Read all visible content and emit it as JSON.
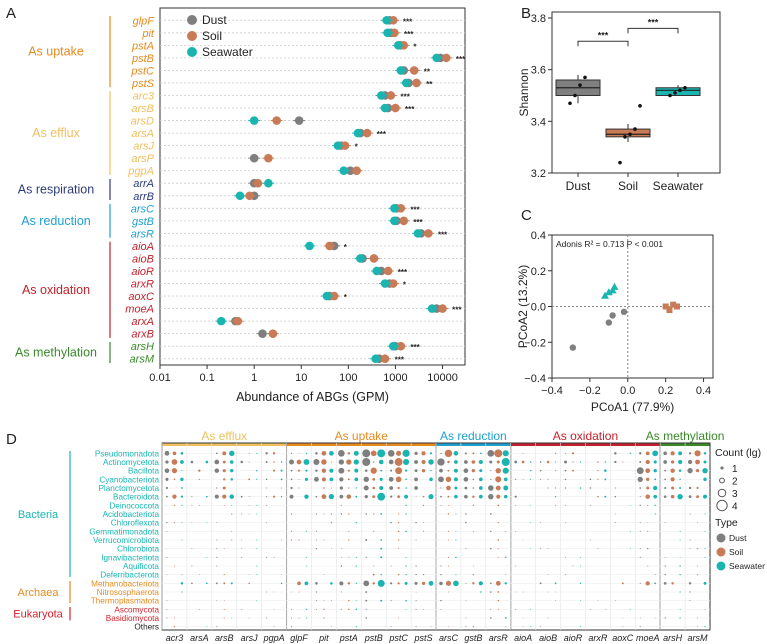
{
  "colors": {
    "dust": "#7f7f7f",
    "soil": "#c87b56",
    "seawater": "#1ab5b0",
    "uptake": "#e58a1f",
    "efflux": "#f0c060",
    "respiration": "#2d3a7a",
    "reduction": "#1e9fd0",
    "oxidation": "#c0232d",
    "methylation": "#3a8a2a",
    "bacteria": "#1ab5b0",
    "archaea": "#e58a1f",
    "eukaryota": "#d9202a"
  },
  "panel_letters": [
    "A",
    "B",
    "C",
    "D"
  ],
  "chart_data": [
    {
      "panel": "A",
      "type": "scatter",
      "orientation": "horizontal",
      "x_scale": "log",
      "xlabel": "Abundance of ABGs (GPM)",
      "xlim": [
        0.01,
        30000
      ],
      "xticks": [
        "0.01",
        "0.1",
        "1",
        "10",
        "100",
        "1000",
        "10000"
      ],
      "legend": [
        "Dust",
        "Soil",
        "Seawater"
      ],
      "genes": [
        {
          "gene": "glpF",
          "category": "As uptake",
          "dust": 750,
          "soil": 900,
          "sea": 650,
          "sig": "***"
        },
        {
          "gene": "pit",
          "category": "As uptake",
          "dust": 800,
          "soil": 950,
          "sea": 680,
          "sig": "***"
        },
        {
          "gene": "pstA",
          "category": "As uptake",
          "dust": 1300,
          "soil": 1500,
          "sea": 1150,
          "sig": "*"
        },
        {
          "gene": "pstB",
          "category": "As uptake",
          "dust": 9000,
          "soil": 12000,
          "sea": 7500,
          "sig": "***"
        },
        {
          "gene": "pstC",
          "category": "As uptake",
          "dust": 1500,
          "soil": 2500,
          "sea": 1300,
          "sig": "**"
        },
        {
          "gene": "pstS",
          "category": "As uptake",
          "dust": 1900,
          "soil": 2800,
          "sea": 1700,
          "sig": "**"
        },
        {
          "gene": "arc3",
          "category": "As efflux",
          "dust": 600,
          "soil": 800,
          "sea": 500,
          "sig": "***"
        },
        {
          "gene": "arsB",
          "category": "As efflux",
          "dust": 700,
          "soil": 1000,
          "sea": 600,
          "sig": "***"
        },
        {
          "gene": "arsD",
          "category": "As efflux",
          "dust": 9,
          "soil": 3,
          "sea": 1,
          "sig": ""
        },
        {
          "gene": "arsA",
          "category": "As efflux",
          "dust": 180,
          "soil": 250,
          "sea": 160,
          "sig": "***"
        },
        {
          "gene": "arsJ",
          "category": "As efflux",
          "dust": 70,
          "soil": 85,
          "sea": 60,
          "sig": "*"
        },
        {
          "gene": "arsP",
          "category": "As efflux",
          "dust": 1,
          "soil": 2,
          "sea": null,
          "sig": ""
        },
        {
          "gene": "pgpA",
          "category": "As efflux",
          "dust": 110,
          "soil": 150,
          "sea": 80,
          "sig": ""
        },
        {
          "gene": "arrA",
          "category": "As respiration",
          "dust": 1,
          "soil": 1.2,
          "sea": 2,
          "sig": ""
        },
        {
          "gene": "arrB",
          "category": "As respiration",
          "dust": 1,
          "soil": 0.8,
          "sea": 0.5,
          "sig": ""
        },
        {
          "gene": "arsC",
          "category": "As reduction",
          "dust": 1050,
          "soil": 1300,
          "sea": 950,
          "sig": "***"
        },
        {
          "gene": "gstB",
          "category": "As reduction",
          "dust": 1050,
          "soil": 1500,
          "sea": 950,
          "sig": "***"
        },
        {
          "gene": "arsR",
          "category": "As reduction",
          "dust": 3500,
          "soil": 5000,
          "sea": 3000,
          "sig": "***"
        },
        {
          "gene": "aioA",
          "category": "As oxidation",
          "dust": 50,
          "soil": 40,
          "sea": 15,
          "sig": "*"
        },
        {
          "gene": "aioB",
          "category": "As oxidation",
          "dust": 200,
          "soil": 350,
          "sea": 180,
          "sig": ""
        },
        {
          "gene": "aioR",
          "category": "As oxidation",
          "dust": 500,
          "soil": 700,
          "sea": 400,
          "sig": "***"
        },
        {
          "gene": "arxR",
          "category": "As oxidation",
          "dust": 750,
          "soil": 900,
          "sea": 600,
          "sig": "*"
        },
        {
          "gene": "aoxC",
          "category": "As oxidation",
          "dust": 40,
          "soil": 50,
          "sea": 35,
          "sig": "*"
        },
        {
          "gene": "moeA",
          "category": "As oxidation",
          "dust": 7500,
          "soil": 10000,
          "sea": 6000,
          "sig": "***"
        },
        {
          "gene": "arxA",
          "category": "As oxidation",
          "dust": 0.4,
          "soil": 0.45,
          "sea": 0.2,
          "sig": ""
        },
        {
          "gene": "arxB",
          "category": "As oxidation",
          "dust": 1.5,
          "soil": 2.5,
          "sea": null,
          "sig": ""
        },
        {
          "gene": "arsH",
          "category": "As methylation",
          "dust": 1000,
          "soil": 1300,
          "sea": 900,
          "sig": "***"
        },
        {
          "gene": "arsM",
          "category": "As methylation",
          "dust": 450,
          "soil": 600,
          "sea": 380,
          "sig": "***"
        }
      ],
      "categories": [
        {
          "name": "As uptake",
          "color_key": "uptake"
        },
        {
          "name": "As efflux",
          "color_key": "efflux"
        },
        {
          "name": "As respiration",
          "color_key": "respiration"
        },
        {
          "name": "As reduction",
          "color_key": "reduction"
        },
        {
          "name": "As oxidation",
          "color_key": "oxidation"
        },
        {
          "name": "As methylation",
          "color_key": "methylation"
        }
      ]
    },
    {
      "panel": "B",
      "type": "box",
      "ylabel": "Shannon",
      "ylim": [
        3.2,
        3.8
      ],
      "yticks": [
        "3.2",
        "3.4",
        "3.6",
        "3.8"
      ],
      "categories": [
        "Dust",
        "Soil",
        "Seawater"
      ],
      "boxes": [
        {
          "name": "Dust",
          "min": 3.47,
          "q1": 3.5,
          "median": 3.53,
          "q3": 3.56,
          "max": 3.58,
          "points": [
            3.47,
            3.5,
            3.54,
            3.57
          ]
        },
        {
          "name": "Soil",
          "min": 3.32,
          "q1": 3.34,
          "median": 3.35,
          "q3": 3.37,
          "max": 3.39,
          "points": [
            3.24,
            3.34,
            3.35,
            3.37,
            3.46
          ]
        },
        {
          "name": "Seawater",
          "min": 3.5,
          "q1": 3.5,
          "median": 3.52,
          "q3": 3.53,
          "max": 3.54,
          "points": [
            3.5,
            3.51,
            3.52,
            3.53
          ]
        }
      ],
      "significance": [
        {
          "from": "Dust",
          "to": "Soil",
          "label": "***"
        },
        {
          "from": "Soil",
          "to": "Seawater",
          "label": "***"
        }
      ]
    },
    {
      "panel": "C",
      "type": "scatter",
      "xlabel": "PCoA1 (77.9%)",
      "ylabel": "PCoA2 (13.2%)",
      "xlim": [
        -0.4,
        0.45
      ],
      "ylim": [
        -0.4,
        0.4
      ],
      "xticks": [
        "−0.4",
        "−0.2",
        "0.0",
        "0.2",
        "0.4"
      ],
      "yticks": [
        "−0.4",
        "−0.2",
        "0.0",
        "0.2",
        "0.4"
      ],
      "annotation": "Adonis  R² = 0.713 P < 0.001",
      "series": [
        {
          "name": "Dust",
          "shape": "circle",
          "x": [
            -0.29,
            -0.1,
            -0.08,
            -0.02
          ],
          "y": [
            -0.23,
            -0.09,
            -0.05,
            -0.03
          ]
        },
        {
          "name": "Soil",
          "shape": "square",
          "x": [
            0.2,
            0.22,
            0.24,
            0.26
          ],
          "y": [
            0.0,
            -0.02,
            0.01,
            0.0
          ]
        },
        {
          "name": "Seawater",
          "shape": "triangle",
          "x": [
            -0.12,
            -0.1,
            -0.08,
            -0.07
          ],
          "y": [
            0.06,
            0.08,
            0.09,
            0.11
          ]
        }
      ]
    },
    {
      "panel": "D",
      "type": "scatter",
      "subtype": "bubble",
      "genes": [
        "acr3",
        "arsA",
        "arsB",
        "arsJ",
        "pgpA",
        "glpF",
        "pit",
        "pstA",
        "pstB",
        "pstC",
        "pstS",
        "arsC",
        "gstB",
        "arsR",
        "aioA",
        "aioB",
        "aioR",
        "arxR",
        "aoxC",
        "moeA",
        "arsH",
        "arsM"
      ],
      "gene_groups": [
        {
          "name": "As efflux",
          "genes": [
            "acr3",
            "arsA",
            "arsB",
            "arsJ",
            "pgpA"
          ],
          "color_key": "efflux"
        },
        {
          "name": "As uptake",
          "genes": [
            "glpF",
            "pit",
            "pstA",
            "pstB",
            "pstC",
            "pstS"
          ],
          "color_key": "uptake"
        },
        {
          "name": "As  reduction",
          "genes": [
            "arsC",
            "gstB",
            "arsR"
          ],
          "color_key": "reduction"
        },
        {
          "name": "As oxidation",
          "genes": [
            "aioA",
            "aioB",
            "aioR",
            "arxR",
            "aoxC",
            "moeA"
          ],
          "color_key": "oxidation"
        },
        {
          "name": "As methylation",
          "genes": [
            "arsH",
            "arsM"
          ],
          "color_key": "methylation"
        }
      ],
      "phyla": [
        "Pseudomonadota",
        "Actinomycetota",
        "Bacillota",
        "Cyanobacteriota",
        "Planctomycetota",
        "Bacteroidota",
        "Deinococcota",
        "Acidobacteriota",
        "Chloroflexota",
        "Gemmatimonadota",
        "Verrucomicrobiota",
        "Chlorobiota",
        "Ignavibacteriota",
        "Aquificota",
        "Deferribacterota",
        "Methanobacteriota",
        "Nitrososphaerota",
        "Thermoplasmatota",
        "Ascomycota",
        "Basidiomycota",
        "Others"
      ],
      "domains": [
        {
          "name": "Bacteria",
          "phyla_count": 15,
          "color_key": "bacteria"
        },
        {
          "name": "Archaea",
          "phyla_count": 3,
          "color_key": "archaea"
        },
        {
          "name": "Eukaryota",
          "phyla_count": 2,
          "color_key": "eukaryota"
        }
      ],
      "size_legend_title": "Count (lg)",
      "size_levels": [
        "1",
        "2",
        "3",
        "4"
      ],
      "type_legend_title": "Type",
      "types": [
        "Dust",
        "Soil",
        "Seawater"
      ],
      "bubble_pattern": "Sizes 0–4 per phylum × gene × type (lg count); generated deterministically for rendering, dominant in Pseudomonadota/Actinomycetota under uptake and reduction genes."
    }
  ]
}
